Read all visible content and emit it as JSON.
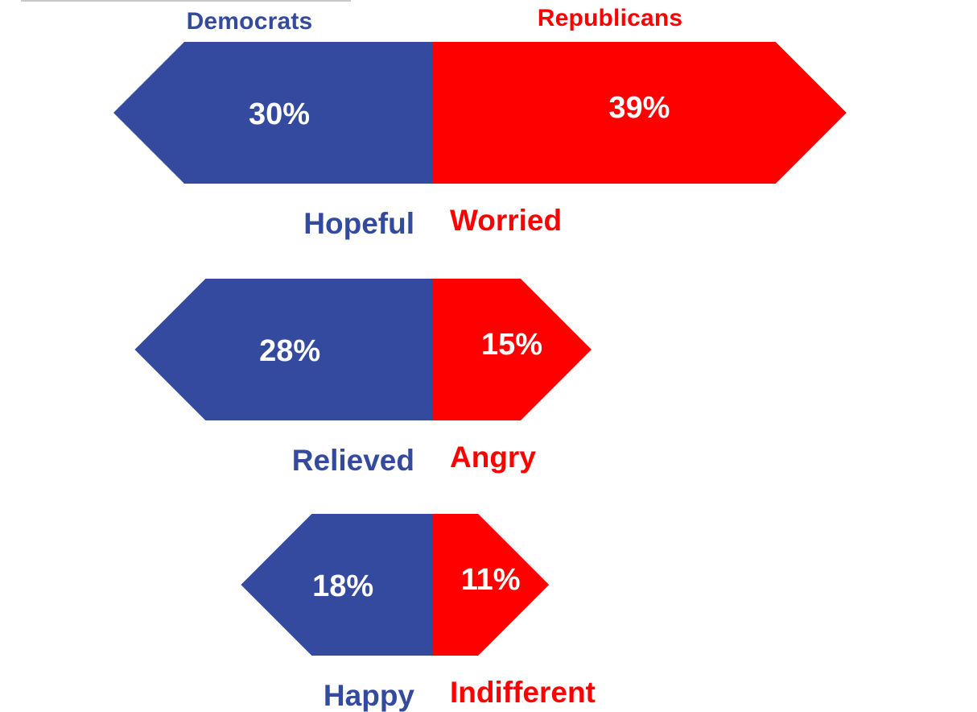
{
  "chart_data": {
    "type": "bar",
    "series": [
      {
        "name": "Democrats",
        "color": "#334a9e",
        "labels": [
          "Hopeful",
          "Relieved",
          "Happy"
        ],
        "values": [
          30,
          28,
          18
        ],
        "display": [
          "30%",
          "28%",
          "18%"
        ]
      },
      {
        "name": "Republicans",
        "color": "#ff0000",
        "labels": [
          "Worried",
          "Angry",
          "Indifferent"
        ],
        "values": [
          39,
          15,
          11
        ],
        "display": [
          "39%",
          "15%",
          "11%"
        ]
      }
    ]
  }
}
